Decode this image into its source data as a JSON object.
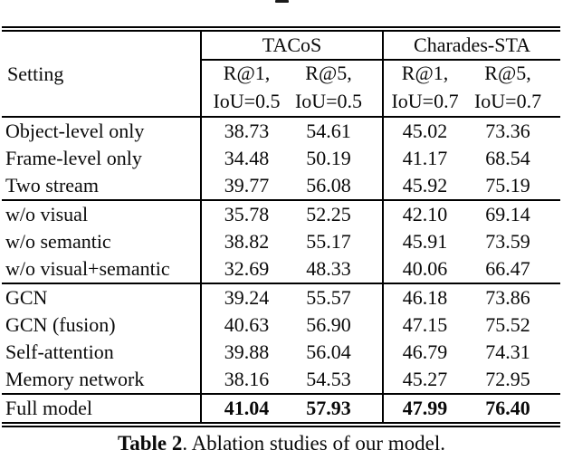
{
  "page": {
    "background_color": "#ffffff",
    "text_color": "#0a0a0a",
    "rule_color": "#000000"
  },
  "table": {
    "header": {
      "setting_label": "Setting",
      "groups": [
        {
          "dataset": "TACoS",
          "r1": "R@1,",
          "r2": "R@5,",
          "iou1": "IoU=0.5",
          "iou2": "IoU=0.5"
        },
        {
          "dataset": "Charades-STA",
          "r1": "R@1,",
          "r2": "R@5,",
          "iou1": "IoU=0.7",
          "iou2": "IoU=0.7"
        }
      ]
    },
    "rows": [
      {
        "label": "Object-level only",
        "values": [
          "38.73",
          "54.61",
          "45.02",
          "73.36"
        ]
      },
      {
        "label": "Frame-level only",
        "values": [
          "34.48",
          "50.19",
          "41.17",
          "68.54"
        ]
      },
      {
        "label": "Two stream",
        "values": [
          "39.77",
          "56.08",
          "45.92",
          "75.19"
        ]
      },
      {
        "label": "w/o visual",
        "values": [
          "35.78",
          "52.25",
          "42.10",
          "69.14"
        ]
      },
      {
        "label": "w/o semantic",
        "values": [
          "38.82",
          "55.17",
          "45.91",
          "73.59"
        ]
      },
      {
        "label": "w/o visual+semantic",
        "values": [
          "32.69",
          "48.33",
          "40.06",
          "66.47"
        ]
      },
      {
        "label": "GCN",
        "values": [
          "39.24",
          "55.57",
          "46.18",
          "73.86"
        ]
      },
      {
        "label": "GCN (fusion)",
        "values": [
          "40.63",
          "56.90",
          "47.15",
          "75.52"
        ]
      },
      {
        "label": "Self-attention",
        "values": [
          "39.88",
          "56.04",
          "46.79",
          "74.31"
        ]
      },
      {
        "label": "Memory network",
        "values": [
          "38.16",
          "54.53",
          "45.27",
          "72.95"
        ]
      },
      {
        "label": "Full model",
        "values": [
          "41.04",
          "57.93",
          "47.99",
          "76.40"
        ],
        "emphasis": "bold"
      }
    ]
  },
  "caption": {
    "label": "Table 2",
    "text": ". Ablation studies of our model."
  }
}
